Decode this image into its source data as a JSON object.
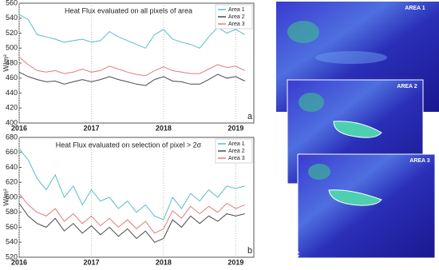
{
  "chart_data": [
    {
      "type": "line",
      "title": "Heat Flux evaluated on all pixels of area",
      "y_label": "W/m²",
      "panel_label": "a",
      "x": [
        2016,
        2016.125,
        2016.25,
        2016.375,
        2016.5,
        2016.625,
        2016.75,
        2016.875,
        2017,
        2017.125,
        2017.25,
        2017.375,
        2017.5,
        2017.625,
        2017.75,
        2017.875,
        2018,
        2018.125,
        2018.25,
        2018.375,
        2018.5,
        2018.625,
        2018.75,
        2018.875,
        2019,
        2019.125
      ],
      "xlim": [
        2016,
        2019.25
      ],
      "xticks": [
        2016,
        2017,
        2018,
        2019
      ],
      "ylim": [
        400,
        560
      ],
      "yticks": [
        400,
        420,
        440,
        460,
        480,
        500,
        520,
        540,
        560
      ],
      "grid": true,
      "legend": "upper-right",
      "series": [
        {
          "name": "Area 1",
          "color": "#5bbcc4",
          "values": [
            545,
            538,
            518,
            515,
            512,
            508,
            510,
            512,
            508,
            510,
            522,
            515,
            510,
            505,
            500,
            518,
            525,
            512,
            508,
            505,
            500,
            515,
            528,
            520,
            525,
            518
          ]
        },
        {
          "name": "Area 2",
          "color": "#4a4a4a",
          "values": [
            468,
            462,
            458,
            455,
            456,
            452,
            455,
            458,
            455,
            458,
            462,
            458,
            455,
            452,
            450,
            458,
            462,
            456,
            455,
            452,
            452,
            458,
            465,
            460,
            462,
            456
          ]
        },
        {
          "name": "Area 3",
          "color": "#e07c7c",
          "values": [
            488,
            478,
            470,
            468,
            470,
            466,
            468,
            472,
            468,
            470,
            476,
            472,
            468,
            465,
            463,
            470,
            475,
            470,
            468,
            466,
            466,
            472,
            478,
            474,
            476,
            470
          ]
        }
      ]
    },
    {
      "type": "line",
      "title": "Heat Flux evaluated on selection of pixel > 2σ",
      "y_label": "W/m²",
      "panel_label": "b",
      "x": [
        2016,
        2016.125,
        2016.25,
        2016.375,
        2016.5,
        2016.625,
        2016.75,
        2016.875,
        2017,
        2017.125,
        2017.25,
        2017.375,
        2017.5,
        2017.625,
        2017.75,
        2017.875,
        2018,
        2018.125,
        2018.25,
        2018.375,
        2018.5,
        2018.625,
        2018.75,
        2018.875,
        2019,
        2019.125
      ],
      "xlim": [
        2016,
        2019.25
      ],
      "xticks": [
        2016,
        2017,
        2018,
        2019
      ],
      "ylim": [
        520,
        680
      ],
      "yticks": [
        520,
        540,
        560,
        580,
        600,
        620,
        640,
        660,
        680
      ],
      "grid": true,
      "legend": "upper-right",
      "series": [
        {
          "name": "Area 1",
          "color": "#5bbcc4",
          "values": [
            665,
            650,
            625,
            610,
            630,
            600,
            615,
            590,
            610,
            595,
            600,
            585,
            595,
            580,
            590,
            575,
            570,
            600,
            585,
            605,
            595,
            610,
            600,
            615,
            612,
            615
          ]
        },
        {
          "name": "Area 2",
          "color": "#4a4a4a",
          "values": [
            592,
            575,
            565,
            560,
            572,
            555,
            565,
            552,
            562,
            550,
            560,
            548,
            558,
            545,
            555,
            540,
            545,
            570,
            560,
            575,
            565,
            575,
            568,
            578,
            575,
            578
          ]
        },
        {
          "name": "Area 3",
          "color": "#e07c7c",
          "values": [
            605,
            590,
            580,
            575,
            585,
            568,
            578,
            565,
            575,
            562,
            572,
            560,
            570,
            558,
            568,
            552,
            558,
            582,
            572,
            588,
            578,
            588,
            580,
            592,
            585,
            590
          ]
        }
      ]
    }
  ],
  "images": {
    "labels": [
      "AREA 1",
      "AREA 2",
      "AREA 3"
    ],
    "panel_label": "c"
  }
}
